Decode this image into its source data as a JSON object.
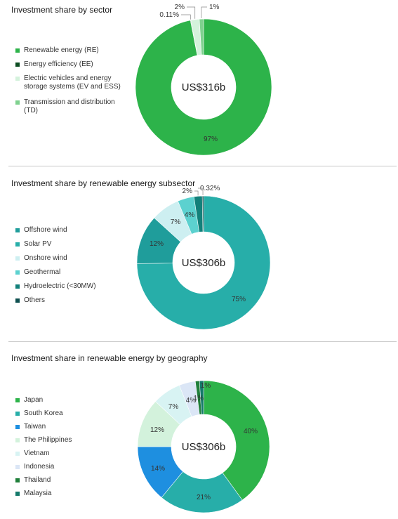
{
  "chart_data": [
    {
      "type": "pie",
      "title": "Investment share by sector",
      "center_label": "US$316b",
      "categories": [
        "Renewable energy (RE)",
        "Energy efficiency (EE)",
        "Electric vehicles and energy storage systems (EV and ESS)",
        "Transmission and distribution (TD)"
      ],
      "values": [
        97,
        0.11,
        2,
        1
      ],
      "slice_labels": [
        "97%",
        "0.11%",
        "2%",
        "1%"
      ],
      "colors": [
        "#2db34a",
        "#0d4d22",
        "#d4f2dc",
        "#7fd18f"
      ],
      "legend_position": "left"
    },
    {
      "type": "pie",
      "title": "Investment share by renewable energy subsector",
      "center_label": "US$306b",
      "categories": [
        "Offshore wind",
        "Solar PV",
        "Onshore wind",
        "Geothermal",
        "Hydroelectric (<30MW)",
        "Others"
      ],
      "values": [
        12,
        75,
        7,
        4,
        2,
        0.32
      ],
      "slice_labels": [
        "12%",
        "75%",
        "7%",
        "4%",
        "2%",
        "0.32%"
      ],
      "colors": [
        "#1f9d9b",
        "#27aea9",
        "#cdeff1",
        "#5cd1cf",
        "#12807a",
        "#0e4f4f"
      ],
      "legend_position": "left"
    },
    {
      "type": "pie",
      "title": "Investment share in renewable energy by geography",
      "center_label": "US$306b",
      "categories": [
        "Japan",
        "South Korea",
        "Taiwan",
        "The Philippines",
        "Vietnam",
        "Indonesia",
        "Thailand",
        "Malaysia"
      ],
      "values": [
        40,
        21,
        14,
        12,
        7,
        4,
        1,
        1
      ],
      "slice_labels": [
        "40%",
        "21%",
        "14%",
        "12%",
        "7%",
        "4%",
        "1%",
        "1%"
      ],
      "colors": [
        "#2db34a",
        "#27aea9",
        "#1e8fe0",
        "#d3f2dc",
        "#d8f3f3",
        "#dbe6f6",
        "#1f7f3a",
        "#157a6b"
      ],
      "legend_position": "left"
    }
  ]
}
